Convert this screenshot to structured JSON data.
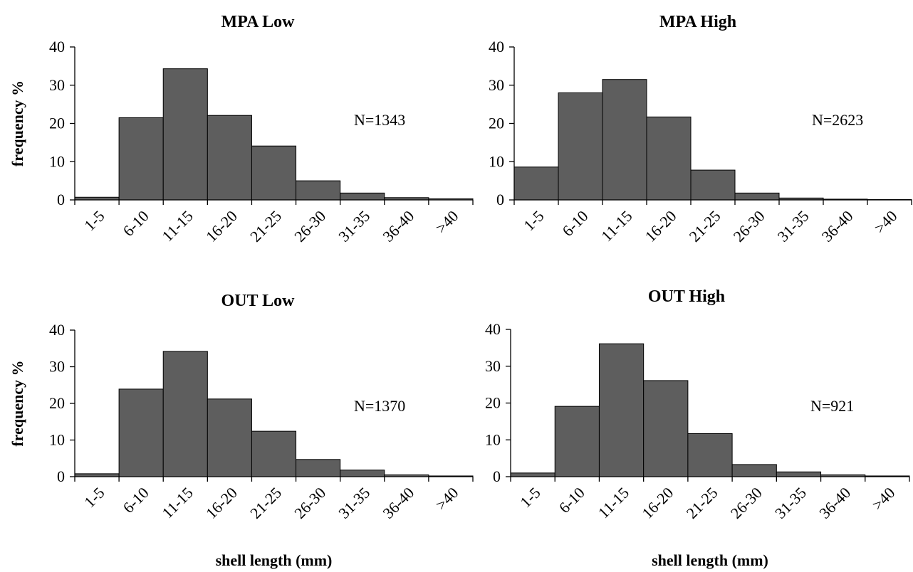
{
  "chart_data": [
    {
      "type": "bar",
      "title": "MPA Low",
      "ylabel": "frequency %",
      "xlabel": "",
      "ylim": [
        0,
        40
      ],
      "yticks": [
        "0",
        "10",
        "20",
        "30",
        "40"
      ],
      "categories": [
        "1-5",
        "6-10",
        "11-15",
        "16-20",
        "21-25",
        "26-30",
        "31-35",
        "36-40",
        ">40"
      ],
      "values": [
        0.7,
        21.5,
        34.3,
        22.1,
        14.1,
        5.0,
        1.8,
        0.6,
        0.3
      ],
      "annotation": "N=1343"
    },
    {
      "type": "bar",
      "title": "MPA High",
      "ylabel": "",
      "xlabel": "",
      "ylim": [
        0,
        40
      ],
      "yticks": [
        "0",
        "10",
        "20",
        "30",
        "40"
      ],
      "categories": [
        "1-5",
        "6-10",
        "11-15",
        "16-20",
        "21-25",
        "26-30",
        "31-35",
        "36-40",
        ">40"
      ],
      "values": [
        8.6,
        28.0,
        31.5,
        21.7,
        7.8,
        1.8,
        0.5,
        0.2,
        0.1
      ],
      "annotation": "N=2623"
    },
    {
      "type": "bar",
      "title": "OUT Low",
      "ylabel": "frequency %",
      "xlabel": "shell length (mm)",
      "ylim": [
        0,
        40
      ],
      "yticks": [
        "0",
        "10",
        "20",
        "30",
        "40"
      ],
      "categories": [
        "1-5",
        "6-10",
        "11-15",
        "16-20",
        "21-25",
        "26-30",
        "31-35",
        "36-40",
        ">40"
      ],
      "values": [
        0.8,
        23.9,
        34.2,
        21.2,
        12.4,
        4.7,
        1.8,
        0.5,
        0.2
      ],
      "annotation": "N=1370"
    },
    {
      "type": "bar",
      "title": "OUT High",
      "ylabel": "",
      "xlabel": "shell length (mm)",
      "ylim": [
        0,
        40
      ],
      "yticks": [
        "0",
        "10",
        "20",
        "30",
        "40"
      ],
      "categories": [
        "1-5",
        "6-10",
        "11-15",
        "16-20",
        "21-25",
        "26-30",
        "31-35",
        "36-40",
        ">40"
      ],
      "values": [
        1.0,
        19.1,
        36.1,
        26.1,
        11.7,
        3.3,
        1.3,
        0.5,
        0.2
      ],
      "annotation": "N=921"
    }
  ]
}
